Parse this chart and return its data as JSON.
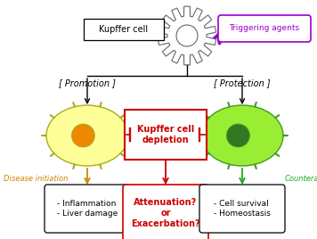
{
  "bg_color": "#ffffff",
  "fig_width": 3.56,
  "fig_height": 2.68,
  "dpi": 100,
  "kupffer_cell_label": "Kupffer cell",
  "triggering_agents_label": "Triggering agents",
  "promotion_label": "[ Promotion ]",
  "protection_label": "[ Protection ]",
  "depletion_label": "Kupffer cell\ndepletion",
  "disease_initiation_label": "Disease initiation",
  "counteraction_label": "Counteraction",
  "left_box_lines": [
    "- Inflammation",
    "- Liver damage"
  ],
  "center_box_lines": [
    "Attenuation?",
    "or",
    "Exacerbation?"
  ],
  "right_box_lines": [
    "- Cell survival",
    "- Homeostasis"
  ],
  "color_red": "#cc0000",
  "color_orange": "#cc8800",
  "color_green": "#22aa22",
  "color_purple": "#9900cc",
  "color_yellow_cell": "#ffff99",
  "color_yellow_nucleus": "#ee8800",
  "color_green_cell": "#99ee33",
  "color_green_nucleus": "#337722",
  "color_gear_fill": "#ffffff",
  "color_gear_stroke": "#666666",
  "color_black": "#111111"
}
